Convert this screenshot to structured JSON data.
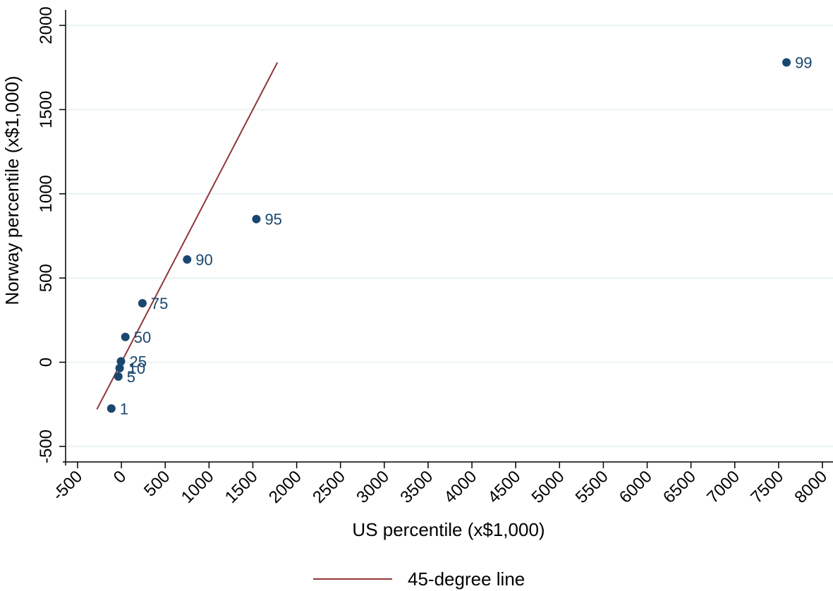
{
  "chart_data": {
    "type": "scatter",
    "xlabel": "US percentile (x$1,000)",
    "ylabel": "Norway percentile (x$1,000)",
    "xlim": [
      -500,
      8000
    ],
    "ylim": [
      -500,
      2000
    ],
    "x_ticks": [
      -500,
      0,
      500,
      1000,
      1500,
      2000,
      2500,
      3000,
      3500,
      4000,
      4500,
      5000,
      5500,
      6000,
      6500,
      7000,
      7500,
      8000
    ],
    "y_ticks": [
      -500,
      0,
      500,
      1000,
      1500,
      2000
    ],
    "grid": "horizontal",
    "legend_position": "bottom",
    "points": [
      {
        "label": "1",
        "x": -115,
        "y": -275
      },
      {
        "label": "5",
        "x": -35,
        "y": -85
      },
      {
        "label": "10",
        "x": -20,
        "y": -35
      },
      {
        "label": "25",
        "x": -5,
        "y": 5
      },
      {
        "label": "50",
        "x": 45,
        "y": 150
      },
      {
        "label": "75",
        "x": 240,
        "y": 350
      },
      {
        "label": "90",
        "x": 750,
        "y": 610
      },
      {
        "label": "95",
        "x": 1540,
        "y": 850
      },
      {
        "label": "99",
        "x": 7590,
        "y": 1780
      }
    ],
    "reference_line": {
      "name": "45-degree line",
      "x": [
        -280,
        1780
      ],
      "y": [
        -280,
        1780
      ]
    },
    "colors": {
      "points": "#1a476f",
      "line": "#90353b",
      "grid": "#eaf2f3"
    }
  }
}
